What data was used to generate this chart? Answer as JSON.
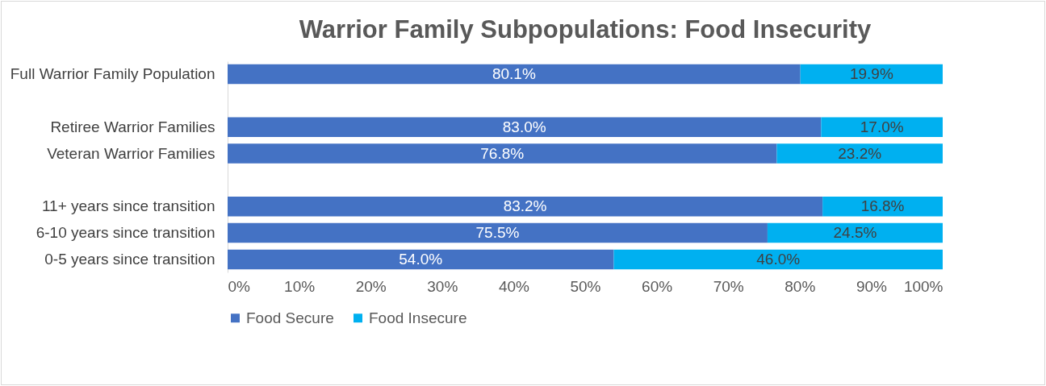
{
  "chart_data": {
    "type": "bar",
    "orientation": "horizontal",
    "stacked": true,
    "title": "Warrior Family Subpopulations: Food Insecurity",
    "categories": [
      "Full Warrior Family Population",
      null,
      "Retiree Warrior Families",
      "Veteran Warrior Families",
      null,
      "11+ years since transition",
      "6-10 years since transition",
      "0-5 years since transition"
    ],
    "series": [
      {
        "name": "Food Secure",
        "color": "#4472c4",
        "values": [
          80.1,
          null,
          83.0,
          76.8,
          null,
          83.2,
          75.5,
          54.0
        ],
        "value_labels": [
          "80.1%",
          null,
          "83.0%",
          "76.8%",
          null,
          "83.2%",
          "75.5%",
          "54.0%"
        ]
      },
      {
        "name": "Food Insecure",
        "color": "#00b0f0",
        "values": [
          19.9,
          null,
          17.0,
          23.2,
          null,
          16.8,
          24.5,
          46.0
        ],
        "value_labels": [
          "19.9%",
          null,
          "17.0%",
          "23.2%",
          null,
          "16.8%",
          "24.5%",
          "46.0%"
        ]
      }
    ],
    "xlim": [
      0,
      100
    ],
    "xticks": [
      {
        "value": 0,
        "label": "0%"
      },
      {
        "value": 10,
        "label": "10%"
      },
      {
        "value": 20,
        "label": "20%"
      },
      {
        "value": 30,
        "label": "30%"
      },
      {
        "value": 40,
        "label": "40%"
      },
      {
        "value": 50,
        "label": "50%"
      },
      {
        "value": 60,
        "label": "60%"
      },
      {
        "value": 70,
        "label": "70%"
      },
      {
        "value": 80,
        "label": "80%"
      },
      {
        "value": 90,
        "label": "90%"
      },
      {
        "value": 100,
        "label": "100%"
      }
    ],
    "legend": "bottom",
    "grid": false
  }
}
